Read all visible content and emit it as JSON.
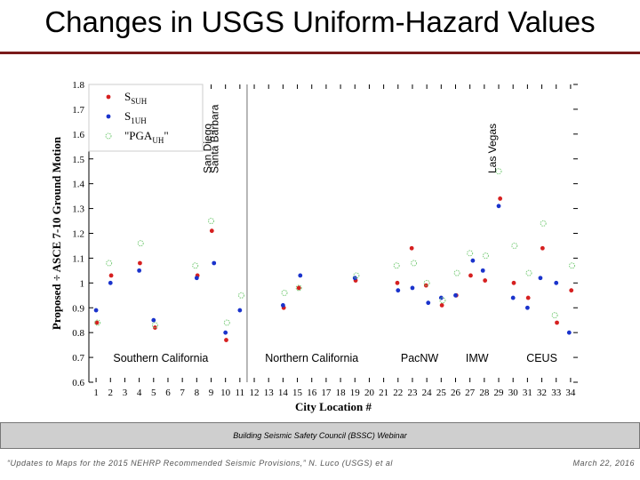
{
  "slide": {
    "title": "Changes in USGS Uniform-Hazard Values",
    "footer_center": "Building Seismic Safety Council (BSSC) Webinar",
    "footer_left": "“Updates to Maps for the 2015 NEHRP Recommended Seismic Provisions,” N. Luco (USGS) et al",
    "footer_right": "March 22, 2016"
  },
  "chart_data": {
    "type": "scatter",
    "xlabel": "City Location #",
    "ylabel": "Proposed ÷ ASCE 7-10 Ground Motion",
    "ylim": [
      0.6,
      1.8
    ],
    "xlim": [
      0.5,
      34.5
    ],
    "x_ticks": [
      1,
      2,
      3,
      4,
      5,
      6,
      7,
      8,
      9,
      10,
      11,
      12,
      13,
      14,
      15,
      16,
      17,
      18,
      19,
      20,
      21,
      22,
      23,
      24,
      25,
      26,
      27,
      28,
      29,
      30,
      31,
      32,
      33,
      34
    ],
    "y_ticks": [
      "0.6",
      "0.7",
      "0.8",
      "0.9",
      "1",
      "1.1",
      "1.2",
      "1.3",
      "1.4",
      "1.5",
      "1.6",
      "1.7",
      "1.8"
    ],
    "colors": {
      "SSUH": "#d62020",
      "S1UH": "#1a33cc",
      "PGA": "#7acc7a",
      "divider": "#888888"
    },
    "legend": [
      {
        "key": "SSUH",
        "label": "S",
        "sub": "SUH",
        "marker": "filled"
      },
      {
        "key": "S1UH",
        "label": "S",
        "sub": "1UH",
        "marker": "filled"
      },
      {
        "key": "PGA",
        "label": "\"PGA",
        "sub": "UH",
        "suffix": "\"",
        "marker": "open"
      }
    ],
    "regions": [
      {
        "label": "Southern California",
        "x_center": 5.5
      },
      {
        "label": "Northern California",
        "x_center": 16
      },
      {
        "label": "PacNW",
        "x_center": 23.5
      },
      {
        "label": "IMW",
        "x_center": 27.5
      },
      {
        "label": "CEUS",
        "x_center": 32
      }
    ],
    "region_dividers": [
      11.5
    ],
    "annotations": [
      {
        "text": "San Diego",
        "x": 9
      },
      {
        "text": "Santa Barbara",
        "x": 9.5
      },
      {
        "text": "Las Vegas",
        "x": 28.8
      }
    ],
    "series": [
      {
        "name": "SSUH",
        "points": [
          [
            1.05,
            0.84
          ],
          [
            2.05,
            1.03
          ],
          [
            4.05,
            1.08
          ],
          [
            5.1,
            0.82
          ],
          [
            8.05,
            1.03
          ],
          [
            9.05,
            1.21
          ],
          [
            10.05,
            0.77
          ],
          [
            14.05,
            0.9
          ],
          [
            15.1,
            0.98
          ],
          [
            19.05,
            1.01
          ],
          [
            21.95,
            1.0
          ],
          [
            22.95,
            1.14
          ],
          [
            23.95,
            0.99
          ],
          [
            25.05,
            0.91
          ],
          [
            26.05,
            0.95
          ],
          [
            27.05,
            1.03
          ],
          [
            28.05,
            1.01
          ],
          [
            29.1,
            1.34
          ],
          [
            30.05,
            1.0
          ],
          [
            31.05,
            0.94
          ],
          [
            32.05,
            1.14
          ],
          [
            33.05,
            0.84
          ],
          [
            34.05,
            0.97
          ]
        ]
      },
      {
        "name": "S1UH",
        "points": [
          [
            1.0,
            0.89
          ],
          [
            2.0,
            1.0
          ],
          [
            4.0,
            1.05
          ],
          [
            5.0,
            0.85
          ],
          [
            8.0,
            1.02
          ],
          [
            9.2,
            1.08
          ],
          [
            10.0,
            0.8
          ],
          [
            11.0,
            0.89
          ],
          [
            14.0,
            0.91
          ],
          [
            15.2,
            1.03
          ],
          [
            19.0,
            1.02
          ],
          [
            22.0,
            0.97
          ],
          [
            23.0,
            0.98
          ],
          [
            24.1,
            0.92
          ],
          [
            25.0,
            0.94
          ],
          [
            26.0,
            0.95
          ],
          [
            27.2,
            1.09
          ],
          [
            27.9,
            1.05
          ],
          [
            29.0,
            1.31
          ],
          [
            30.0,
            0.94
          ],
          [
            31.0,
            0.9
          ],
          [
            31.9,
            1.02
          ],
          [
            33.0,
            1.0
          ],
          [
            33.9,
            0.8
          ]
        ]
      },
      {
        "name": "PGA",
        "points": [
          [
            1.1,
            0.84
          ],
          [
            1.9,
            1.08
          ],
          [
            4.1,
            1.16
          ],
          [
            5.1,
            0.83
          ],
          [
            7.9,
            1.07
          ],
          [
            9.0,
            1.25
          ],
          [
            10.1,
            0.84
          ],
          [
            11.1,
            0.95
          ],
          [
            14.1,
            0.96
          ],
          [
            15.1,
            0.98
          ],
          [
            19.1,
            1.03
          ],
          [
            21.9,
            1.07
          ],
          [
            23.1,
            1.08
          ],
          [
            24.0,
            1.0
          ],
          [
            25.1,
            0.93
          ],
          [
            26.1,
            1.04
          ],
          [
            27.0,
            1.12
          ],
          [
            28.1,
            1.11
          ],
          [
            29.0,
            1.45
          ],
          [
            30.1,
            1.15
          ],
          [
            31.1,
            1.04
          ],
          [
            32.1,
            1.24
          ],
          [
            32.9,
            0.87
          ],
          [
            34.1,
            1.07
          ]
        ]
      }
    ]
  }
}
